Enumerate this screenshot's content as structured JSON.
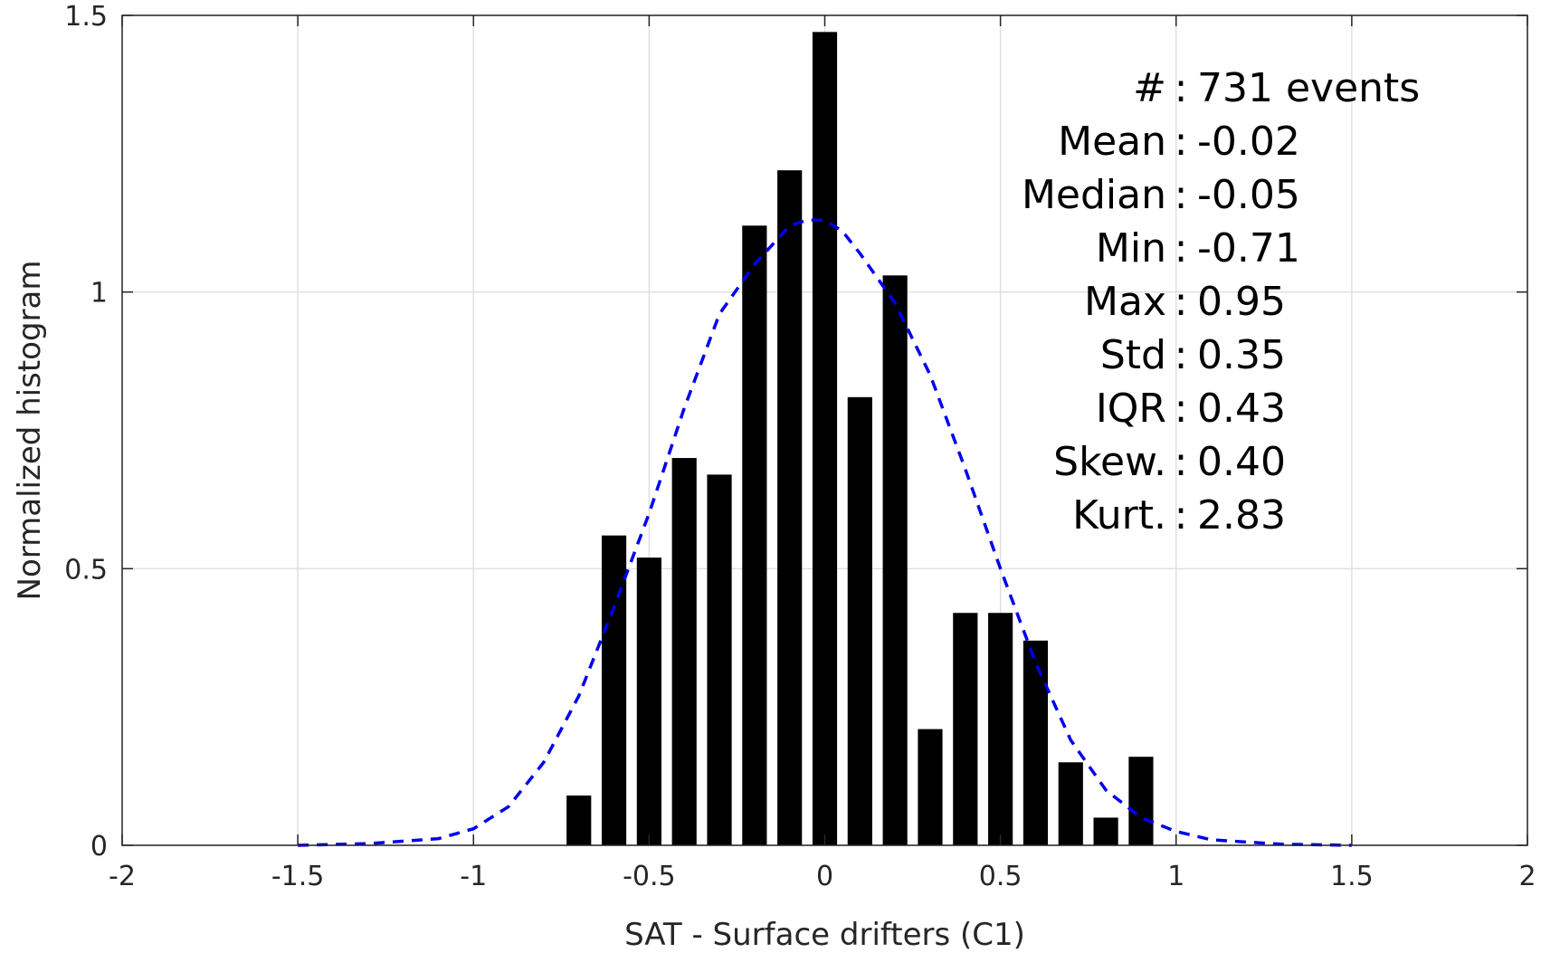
{
  "chart_data": {
    "type": "bar",
    "xlabel": "SAT - Surface drifters (C1)",
    "ylabel": "Normalized histogram",
    "xlim": [
      -2,
      2
    ],
    "ylim": [
      0,
      1.5
    ],
    "xticks": [
      -2,
      -1.5,
      -1,
      -0.5,
      0,
      0.5,
      1,
      1.5,
      2
    ],
    "xtick_labels": [
      "-2",
      "-1.5",
      "-1",
      "-0.5",
      "0",
      "0.5",
      "1",
      "1.5",
      "2"
    ],
    "yticks": [
      0,
      0.5,
      1,
      1.5
    ],
    "ytick_labels": [
      "0",
      "0.5",
      "1",
      "1.5"
    ],
    "grid": true,
    "bar_width": 0.07,
    "bar_color": "#000000",
    "bars": {
      "x": [
        -0.7,
        -0.6,
        -0.5,
        -0.4,
        -0.3,
        -0.2,
        -0.1,
        0.0,
        0.1,
        0.2,
        0.3,
        0.4,
        0.5,
        0.6,
        0.7,
        0.8,
        0.9
      ],
      "values": [
        0.09,
        0.56,
        0.52,
        0.7,
        0.67,
        1.12,
        1.22,
        1.47,
        0.81,
        1.03,
        0.21,
        0.42,
        0.42,
        0.37,
        0.15,
        0.05,
        0.16
      ]
    },
    "fit_curve": {
      "style": "dashed",
      "color": "#0000ee",
      "x": [
        -1.5,
        -1.3,
        -1.1,
        -1.0,
        -0.9,
        -0.8,
        -0.7,
        -0.6,
        -0.5,
        -0.4,
        -0.3,
        -0.2,
        -0.1,
        -0.05,
        0.0,
        0.05,
        0.1,
        0.2,
        0.3,
        0.4,
        0.5,
        0.6,
        0.7,
        0.8,
        0.9,
        1.0,
        1.1,
        1.3,
        1.5
      ],
      "y": [
        0.0,
        0.003,
        0.012,
        0.03,
        0.07,
        0.15,
        0.27,
        0.43,
        0.6,
        0.79,
        0.96,
        1.05,
        1.12,
        1.13,
        1.13,
        1.11,
        1.07,
        0.98,
        0.85,
        0.68,
        0.5,
        0.33,
        0.19,
        0.1,
        0.05,
        0.025,
        0.01,
        0.002,
        0.0
      ]
    },
    "annotations": [
      {
        "label": "#  ",
        "value": "731 events"
      },
      {
        "label": "Mean",
        "value": "-0.02"
      },
      {
        "label": "Median",
        "value": "-0.05"
      },
      {
        "label": "Min",
        "value": "-0.71"
      },
      {
        "label": "Max",
        "value": "0.95"
      },
      {
        "label": "Std",
        "value": "0.35"
      },
      {
        "label": "IQR",
        "value": "0.43"
      },
      {
        "label": "Skew.",
        "value": "0.40"
      },
      {
        "label": "Kurt.",
        "value": "2.83"
      }
    ]
  }
}
